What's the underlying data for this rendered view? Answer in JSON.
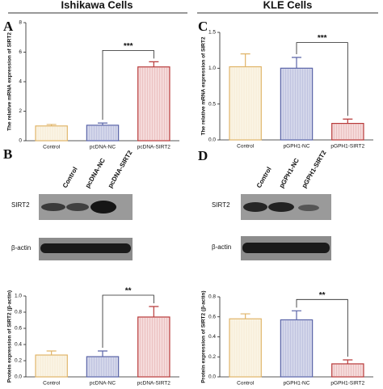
{
  "headers": [
    "Ishikawa Cells",
    "KLE Cells"
  ],
  "panels": [
    "A",
    "B",
    "C",
    "D"
  ],
  "blots": [
    {
      "lanes": [
        "Control",
        "pcDNA-NC",
        "pcDNA-SIRT2"
      ],
      "rows": [
        "SIRT2",
        "β-actin"
      ]
    },
    {
      "lanes": [
        "Control",
        "pGPH1-NC",
        "pGPH1-SIRT2"
      ],
      "rows": [
        "SIRT2",
        "β-actin"
      ]
    }
  ],
  "chart_data": [
    {
      "type": "bar",
      "ylabel": "The relative mRNA expression of SIRT2",
      "categories": [
        "Control",
        "pcDNA-NC",
        "pcDNA-SIRT2"
      ],
      "values": [
        1.0,
        1.05,
        5.0
      ],
      "errors": [
        0.1,
        0.15,
        0.35
      ],
      "colors": [
        "#fbf5e6",
        "#d3d6ea",
        "#f5dada"
      ],
      "edgecolors": [
        "#e0b468",
        "#5a64a8",
        "#b83a3a"
      ],
      "ylim": [
        0,
        8
      ],
      "yticks": [
        0,
        2,
        4,
        6,
        8
      ],
      "annotations": [
        {
          "text": "***",
          "between": [
            "pcDNA-NC",
            "pcDNA-SIRT2"
          ]
        }
      ]
    },
    {
      "type": "bar",
      "ylabel": "Protein expression of SIRT2 (β-actin)",
      "categories": [
        "Control",
        "pcDNA-NC",
        "pcDNA-SIRT2"
      ],
      "values": [
        0.27,
        0.25,
        0.74
      ],
      "errors": [
        0.05,
        0.07,
        0.13
      ],
      "colors": [
        "#fbf5e6",
        "#d3d6ea",
        "#f5dada"
      ],
      "edgecolors": [
        "#e0b468",
        "#5a64a8",
        "#b83a3a"
      ],
      "ylim": [
        0,
        1.0
      ],
      "yticks": [
        {
          "value": 0,
          "label": "0.0"
        },
        0.2,
        0.4,
        0.6,
        0.8,
        {
          "value": 1,
          "label": "1.0"
        }
      ],
      "annotations": [
        {
          "text": "**",
          "between": [
            "pcDNA-NC",
            "pcDNA-SIRT2"
          ]
        }
      ]
    },
    {
      "type": "bar",
      "ylabel": "The relative mRNA expression of SIRT2",
      "categories": [
        "Control",
        "pGPH1-NC",
        "pGPH1-SIRT2"
      ],
      "values": [
        1.02,
        1.0,
        0.23
      ],
      "errors": [
        0.18,
        0.15,
        0.06
      ],
      "colors": [
        "#fbf5e6",
        "#d3d6ea",
        "#f5dada"
      ],
      "edgecolors": [
        "#e0b468",
        "#5a64a8",
        "#b83a3a"
      ],
      "ylim": [
        0,
        1.5
      ],
      "yticks": [
        {
          "value": 0,
          "label": "0.0"
        },
        0.5,
        {
          "value": 1,
          "label": "1.0"
        },
        1.5
      ],
      "annotations": [
        {
          "text": "***",
          "between": [
            "pGPH1-NC",
            "pGPH1-SIRT2"
          ]
        }
      ]
    },
    {
      "type": "bar",
      "ylabel": "Protein expression of SIRT2 (β-actin)",
      "categories": [
        "Control",
        "pGPH1-NC",
        "pGPH1-SIRT2"
      ],
      "values": [
        0.58,
        0.57,
        0.13
      ],
      "errors": [
        0.05,
        0.09,
        0.04
      ],
      "colors": [
        "#fbf5e6",
        "#d3d6ea",
        "#f5dada"
      ],
      "edgecolors": [
        "#e0b468",
        "#5a64a8",
        "#b83a3a"
      ],
      "ylim": [
        0,
        0.8
      ],
      "yticks": [
        {
          "value": 0,
          "label": "0.0"
        },
        0.2,
        0.4,
        0.6,
        0.8
      ],
      "annotations": [
        {
          "text": "**",
          "between": [
            "pGPH1-NC",
            "pGPH1-SIRT2"
          ]
        }
      ]
    }
  ]
}
